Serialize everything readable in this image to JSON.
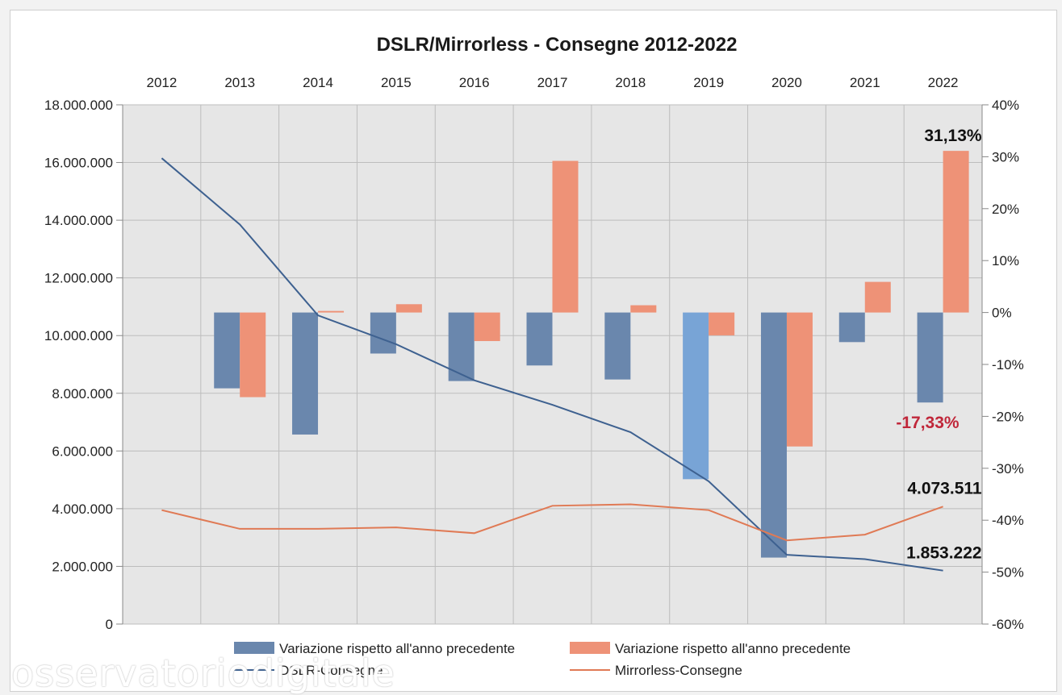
{
  "chart_data": {
    "type": "bar",
    "title": "DSLR/Mirrorless - Consegne 2012-2022",
    "categories": [
      "2012",
      "2013",
      "2014",
      "2015",
      "2016",
      "2017",
      "2018",
      "2019",
      "2020",
      "2021",
      "2022"
    ],
    "y_left": {
      "range": [
        0,
        18000000
      ],
      "ticks": [
        0,
        2000000,
        4000000,
        6000000,
        8000000,
        10000000,
        12000000,
        14000000,
        16000000,
        18000000
      ],
      "tick_labels": [
        "0",
        "2.000.000",
        "4.000.000",
        "6.000.000",
        "8.000.000",
        "10.000.000",
        "12.000.000",
        "14.000.000",
        "16.000.000",
        "18.000.000"
      ]
    },
    "y_right": {
      "range": [
        -60,
        40
      ],
      "ticks": [
        -60,
        -50,
        -40,
        -30,
        -20,
        -10,
        0,
        10,
        20,
        30,
        40
      ],
      "tick_labels": [
        "-60%",
        "-50%",
        "-40%",
        "-30%",
        "-20%",
        "-10%",
        "0%",
        "10%",
        "20%",
        "30%",
        "40%"
      ]
    },
    "grid": true,
    "legend_position": "bottom",
    "series": [
      {
        "name": "Variazione rispetto all'anno precedente",
        "kind": "bar",
        "axis": "right",
        "color": "#6a87ad",
        "values": [
          null,
          -14.6,
          -23.5,
          -7.9,
          -13.2,
          -10.2,
          -12.9,
          -32.1,
          -47.2,
          -5.7,
          -17.33
        ]
      },
      {
        "name": "Variazione rispetto all'anno precedente",
        "kind": "bar",
        "axis": "right",
        "color": "#ee9277",
        "values": [
          null,
          -16.3,
          0.3,
          1.6,
          -5.5,
          29.2,
          1.4,
          -4.4,
          -25.8,
          5.9,
          31.13
        ]
      },
      {
        "name": "DSLR-Consegne",
        "kind": "line",
        "axis": "left",
        "color": "#3e6190",
        "values": [
          16150000,
          13850000,
          10700000,
          9700000,
          8450000,
          7600000,
          6650000,
          4950000,
          2400000,
          2250000,
          1853222
        ]
      },
      {
        "name": "Mirrorless-Consegne",
        "kind": "line",
        "axis": "left",
        "color": "#e07a55",
        "values": [
          3950000,
          3300000,
          3300000,
          3350000,
          3150000,
          4100000,
          4150000,
          3950000,
          2900000,
          3100000,
          4073511
        ]
      }
    ],
    "annotations": [
      {
        "text": "31,13%",
        "color": "#111111"
      },
      {
        "text": "-17,33%",
        "color": "#c0273a"
      },
      {
        "text": "4.073.511",
        "color": "#111111"
      },
      {
        "text": "1.853.222",
        "color": "#111111"
      }
    ]
  },
  "watermark": "osservatoriodigitale"
}
